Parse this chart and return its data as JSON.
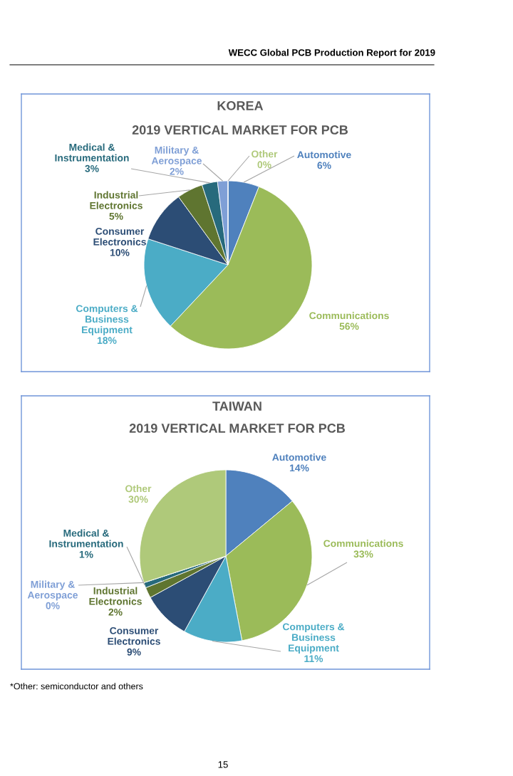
{
  "chart_data": [
    {
      "type": "pie",
      "title": "KOREA",
      "subtitle": "2019 VERTICAL MARKET FOR PCB",
      "categories": [
        "Automotive",
        "Communications",
        "Computers &\nBusiness\nEquipment",
        "Consumer\nElectronics",
        "Industrial\nElectronics",
        "Medical &\nInstrumentation",
        "Military &\nAerospace",
        "Other"
      ],
      "values": [
        6,
        56,
        18,
        10,
        5,
        3,
        2,
        0
      ],
      "value_labels": [
        "6%",
        "56%",
        "18%",
        "10%",
        "5%",
        "3%",
        "2%",
        "0%"
      ],
      "colors": [
        "#4f81bd",
        "#9bbb59",
        "#4bacc6",
        "#2c4d75",
        "#5f7530",
        "#276a7c",
        "#7f9fd6",
        "#afc97a"
      ],
      "annotations": [
        "WECC Global PCB Production Report for 2019"
      ]
    },
    {
      "type": "pie",
      "title": "TAIWAN",
      "subtitle": "2019 VERTICAL MARKET FOR PCB",
      "categories": [
        "Automotive",
        "Communications",
        "Computers &\nBusiness\nEquipment",
        "Consumer\nElectronics",
        "Industrial\nElectronics",
        "Medical &\nInstrumentation",
        "Military &\nAerospace",
        "Other"
      ],
      "values": [
        14,
        33,
        11,
        9,
        2,
        1,
        0,
        30
      ],
      "value_labels": [
        "14%",
        "33%",
        "11%",
        "9%",
        "2%",
        "1%",
        "0%",
        "30%"
      ],
      "colors": [
        "#4f81bd",
        "#9bbb59",
        "#4bacc6",
        "#2c4d75",
        "#5f7530",
        "#276a7c",
        "#7f9fd6",
        "#afc97a"
      ],
      "annotations": [
        "*Other: semiconductor and others",
        "15"
      ]
    }
  ]
}
